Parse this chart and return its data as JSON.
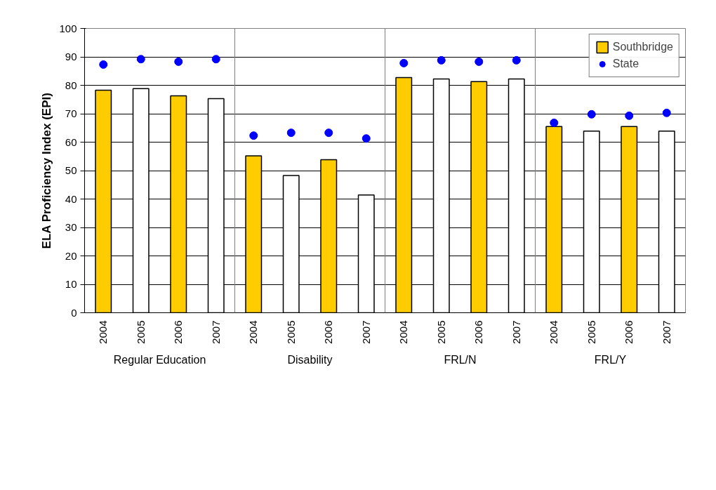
{
  "chart_data": {
    "type": "bar",
    "ylabel": "ELA Proficiency Index (EPI)",
    "categories": [
      "2004",
      "2005",
      "2006",
      "2007",
      "2004",
      "2005",
      "2006",
      "2007",
      "2004",
      "2005",
      "2006",
      "2007",
      "2004",
      "2005",
      "2006",
      "2007"
    ],
    "annotations": [
      "Regular Education",
      "Disability",
      "FRL/N",
      "FRL/Y"
    ],
    "series": [
      {
        "name": "Southbridge",
        "color": "#ffcc00",
        "colors": [
          "#ffcc00",
          "#ffffff",
          "#ffcc00",
          "#ffffff",
          "#ffcc00",
          "#ffffff",
          "#ffcc00",
          "#ffffff",
          "#ffcc00",
          "#ffffff",
          "#ffcc00",
          "#ffffff",
          "#ffcc00",
          "#ffffff",
          "#ffcc00",
          "#ffffff"
        ],
        "values": [
          78.3,
          78.8,
          76.3,
          75.3,
          55.2,
          48.3,
          53.8,
          41.4,
          82.7,
          82.2,
          81.3,
          82.2,
          65.5,
          63.9,
          65.5,
          63.9
        ]
      },
      {
        "name": "State",
        "type": "scatter",
        "color": "#0000ff",
        "values": [
          87.3,
          89.2,
          88.3,
          89.2,
          62.3,
          63.3,
          63.3,
          61.3,
          87.8,
          88.8,
          88.3,
          88.8,
          66.8,
          69.8,
          69.3,
          70.3
        ]
      }
    ],
    "ylim": [
      0,
      100
    ],
    "yticks": [
      0,
      10,
      20,
      30,
      40,
      50,
      60,
      70,
      80,
      90,
      100
    ],
    "grid": "y",
    "legend": "top right",
    "marker": "circle"
  }
}
